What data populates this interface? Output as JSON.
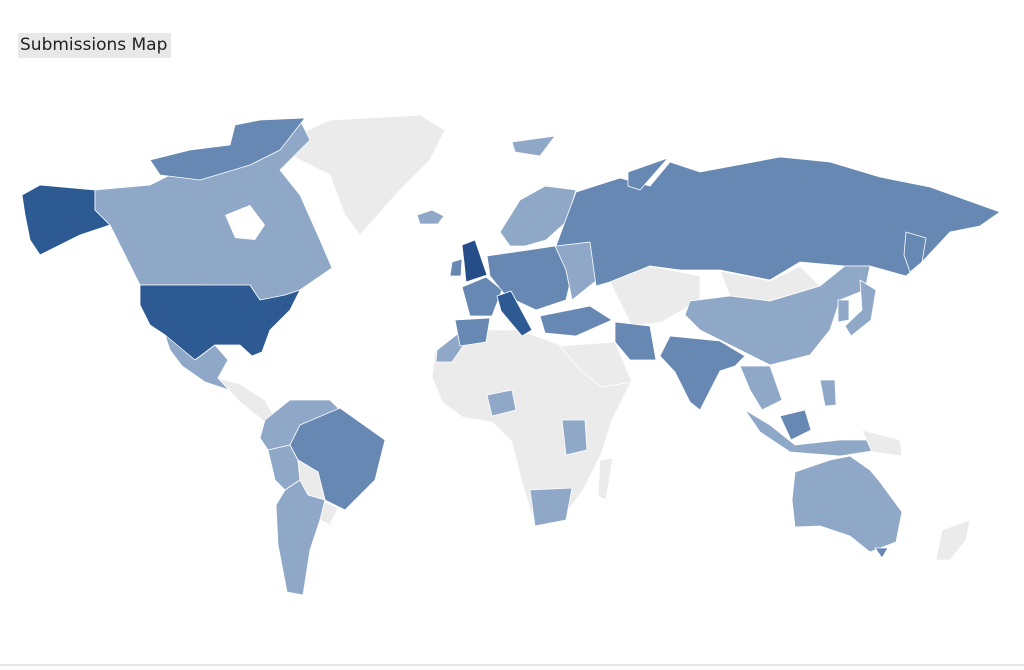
{
  "title": "Submissions Map",
  "color_scale": {
    "none": "#ebebeb",
    "low": "#8fa8c8",
    "medium": "#6688b3",
    "high": "#2e5a94",
    "highest": "#254d88"
  }
}
